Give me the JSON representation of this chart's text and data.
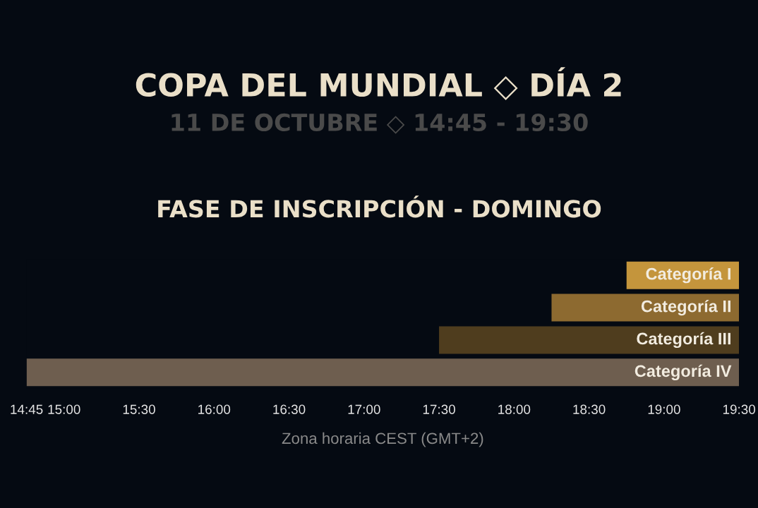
{
  "chart_data": {
    "type": "bar",
    "orientation": "horizontal",
    "title": "COPA DEL MUNDIAL ◇ DÍA 2",
    "subtitle": "11 DE OCTUBRE ◇ 14:45 - 19:30",
    "annotations": [
      "FASE DE INSCRIPCIÓN - DOMINGO"
    ],
    "xlabel": "Zona horaria CEST (GMT+2)",
    "categories": [
      "Categoría I",
      "Categoría II",
      "Categoría III",
      "Categoría IV"
    ],
    "base": [
      18.75,
      18.25,
      17.5,
      14.75
    ],
    "values": [
      0.75,
      1.25,
      2.0,
      4.75
    ],
    "colors": [
      "#c4953c",
      "#8d6a30",
      "#4f3d1e",
      "#6e5e4f"
    ],
    "xlim": [
      14.75,
      19.5
    ],
    "xticks": [
      {
        "value": 14.75,
        "label": "14:45"
      },
      {
        "value": 15,
        "label": "15:00"
      },
      {
        "value": 15.5,
        "label": "15:30"
      },
      {
        "value": 16,
        "label": "16:00"
      },
      {
        "value": 16.5,
        "label": "16:30"
      },
      {
        "value": 17,
        "label": "17:00"
      },
      {
        "value": 17.5,
        "label": "17:30"
      },
      {
        "value": 18,
        "label": "18:00"
      },
      {
        "value": 18.5,
        "label": "18:30"
      },
      {
        "value": 19,
        "label": "19:00"
      },
      {
        "value": 19.5,
        "label": "19:30"
      }
    ],
    "grid": false,
    "legend": false
  }
}
